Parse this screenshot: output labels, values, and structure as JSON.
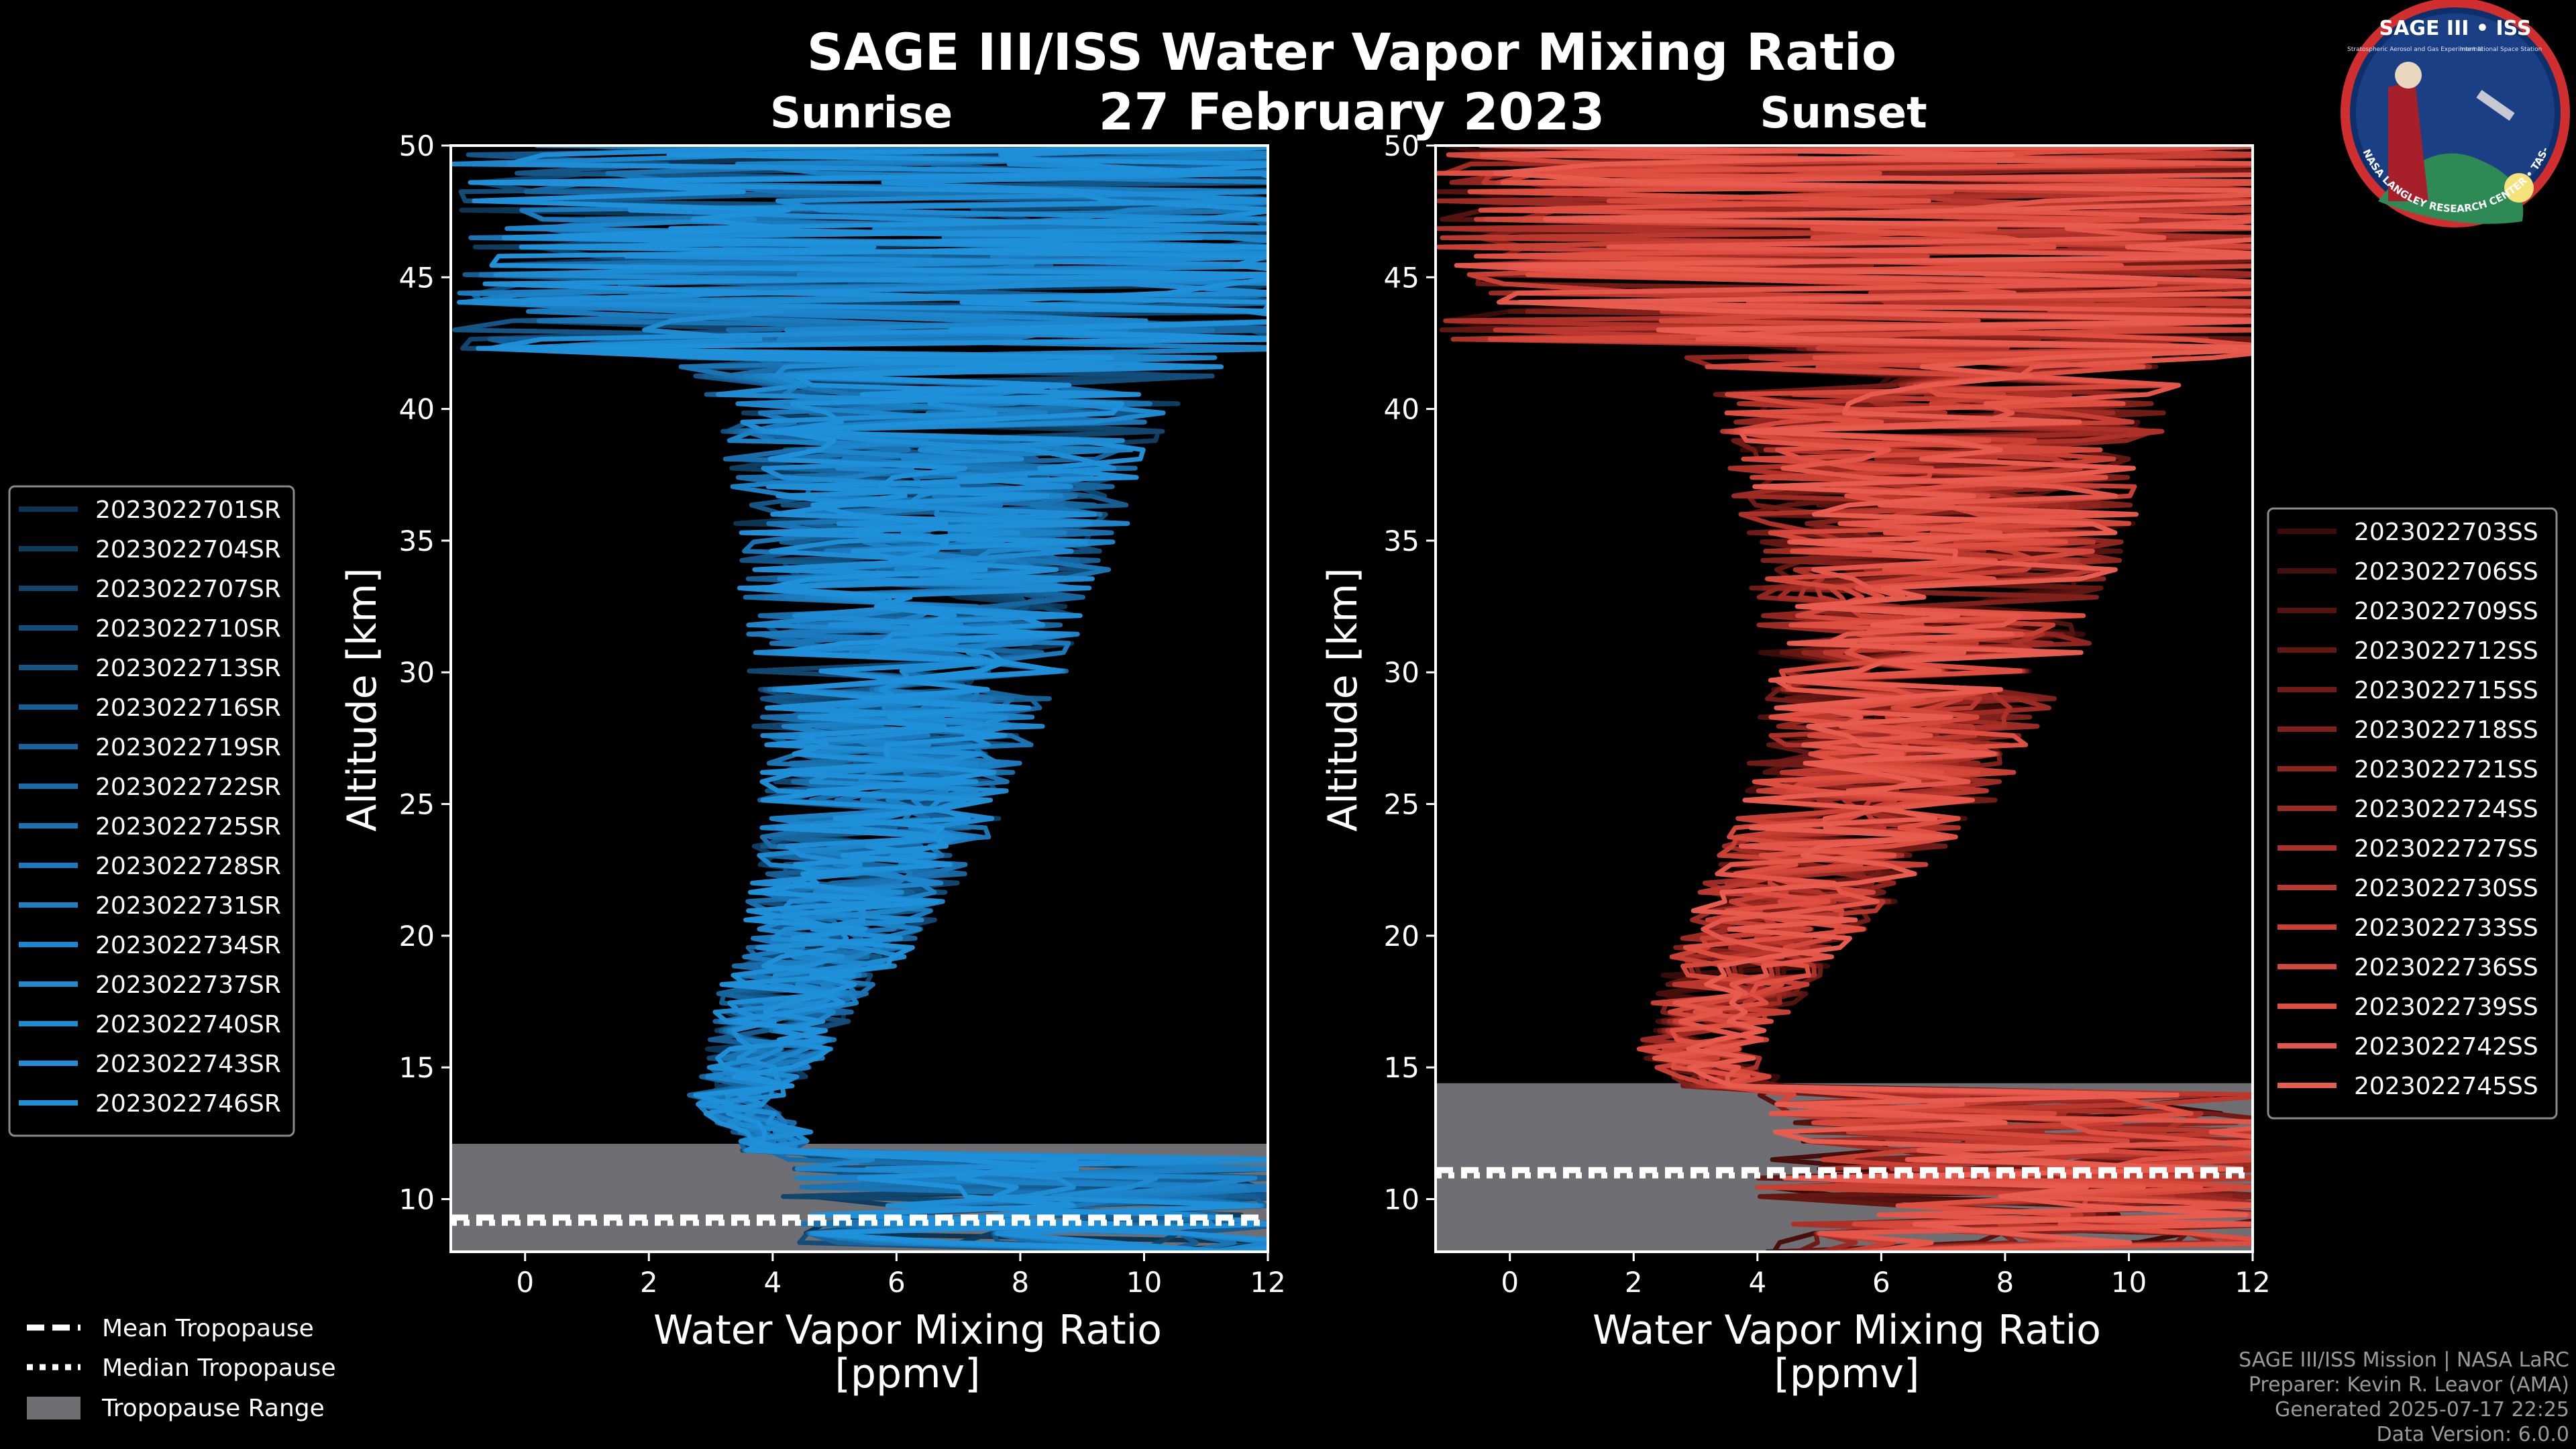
{
  "title": "SAGE III/ISS Water Vapor Mixing Ratio",
  "date": "27 February 2023",
  "colors": {
    "background": "#000000",
    "sunrise": "#1f90d8",
    "sunset": "#e8594a",
    "tropopause_range": "#6e6e73"
  },
  "logo": {
    "title": "SAGE III • ISS",
    "subtitle_left": "Stratospheric Aerosol and Gas Experiment III",
    "subtitle_right": "International Space Station",
    "rim": "BALL • NASA LANGLEY RESEARCH CENTER • TAS-I • ESA"
  },
  "tropopause_legend": {
    "mean": "Mean Tropopause",
    "median": "Median Tropopause",
    "range": "Tropopause Range"
  },
  "footer": {
    "line1": "SAGE III/ISS Mission | NASA LaRC",
    "line2": "Preparer: Kevin R. Leavor (AMA)",
    "line3": "Generated 2025-07-17 22:25",
    "line4": "Data Version: 6.0.0"
  },
  "chart_data": [
    {
      "type": "line",
      "panel": "Sunrise",
      "title": "Sunrise",
      "xlabel_line1": "Water Vapor Mixing Ratio",
      "xlabel_line2": "[ppmv]",
      "ylabel": "Altitude [km]",
      "xlim": [
        -1.2,
        12
      ],
      "ylim": [
        8,
        50
      ],
      "xticks": [
        0,
        2,
        4,
        6,
        8,
        10,
        12
      ],
      "yticks": [
        10,
        15,
        20,
        25,
        30,
        35,
        40,
        45,
        50
      ],
      "legend_position": "left",
      "tropopause": {
        "mean_km": 9.3,
        "median_km": 9.1,
        "range_km": [
          8,
          12.1
        ]
      },
      "profile_shape": [
        [
          12.5,
          4.0
        ],
        [
          13.5,
          3.2
        ],
        [
          15,
          3.8
        ],
        [
          18,
          4.4
        ],
        [
          20,
          5.0
        ],
        [
          25,
          5.8
        ],
        [
          30,
          6.2
        ],
        [
          35,
          6.5
        ],
        [
          40,
          6.8
        ],
        [
          45,
          7.0
        ],
        [
          50,
          7.2
        ]
      ],
      "series": [
        {
          "name": "2023022701SR",
          "color": "#0c3553"
        },
        {
          "name": "2023022704SR",
          "color": "#0e3d60"
        },
        {
          "name": "2023022707SR",
          "color": "#10456d"
        },
        {
          "name": "2023022710SR",
          "color": "#124d7a"
        },
        {
          "name": "2023022713SR",
          "color": "#145587"
        },
        {
          "name": "2023022716SR",
          "color": "#155d93"
        },
        {
          "name": "2023022719SR",
          "color": "#17659f"
        },
        {
          "name": "2023022722SR",
          "color": "#186daa"
        },
        {
          "name": "2023022725SR",
          "color": "#1a74b4"
        },
        {
          "name": "2023022728SR",
          "color": "#1b7abd"
        },
        {
          "name": "2023022731SR",
          "color": "#1c80c5"
        },
        {
          "name": "2023022734SR",
          "color": "#1d85cc"
        },
        {
          "name": "2023022737SR",
          "color": "#1e8ad2"
        },
        {
          "name": "2023022740SR",
          "color": "#1e8dd6"
        },
        {
          "name": "2023022743SR",
          "color": "#1f8fd8"
        },
        {
          "name": "2023022746SR",
          "color": "#1f91da"
        }
      ]
    },
    {
      "type": "line",
      "panel": "Sunset",
      "title": "Sunset",
      "xlabel_line1": "Water Vapor Mixing Ratio",
      "xlabel_line2": "[ppmv]",
      "ylabel": "Altitude [km]",
      "xlim": [
        -1.2,
        12
      ],
      "ylim": [
        8,
        50
      ],
      "xticks": [
        0,
        2,
        4,
        6,
        8,
        10,
        12
      ],
      "yticks": [
        10,
        15,
        20,
        25,
        30,
        35,
        40,
        45,
        50
      ],
      "legend_position": "right",
      "tropopause": {
        "mean_km": 11.1,
        "median_km": 10.9,
        "range_km": [
          8,
          14.4
        ]
      },
      "profile_shape": [
        [
          14.5,
          3.6
        ],
        [
          15.5,
          3.0
        ],
        [
          18,
          3.6
        ],
        [
          20,
          4.2
        ],
        [
          25,
          5.8
        ],
        [
          30,
          6.6
        ],
        [
          35,
          6.9
        ],
        [
          40,
          7.0
        ],
        [
          45,
          7.0
        ],
        [
          50,
          7.2
        ]
      ],
      "series": [
        {
          "name": "2023022703SS",
          "color": "#3a0c09"
        },
        {
          "name": "2023022706SS",
          "color": "#470f0c"
        },
        {
          "name": "2023022709SS",
          "color": "#55130f"
        },
        {
          "name": "2023022712SS",
          "color": "#631712"
        },
        {
          "name": "2023022715SS",
          "color": "#711b16"
        },
        {
          "name": "2023022718SS",
          "color": "#80201a"
        },
        {
          "name": "2023022721SS",
          "color": "#8f251e"
        },
        {
          "name": "2023022724SS",
          "color": "#9e2b23"
        },
        {
          "name": "2023022727SS",
          "color": "#ad3128"
        },
        {
          "name": "2023022730SS",
          "color": "#bb382e"
        },
        {
          "name": "2023022733SS",
          "color": "#c83f34"
        },
        {
          "name": "2023022736SS",
          "color": "#d4473b"
        },
        {
          "name": "2023022739SS",
          "color": "#de4f42"
        },
        {
          "name": "2023022742SS",
          "color": "#e4564a"
        },
        {
          "name": "2023022745SS",
          "color": "#e85c50"
        }
      ]
    }
  ]
}
